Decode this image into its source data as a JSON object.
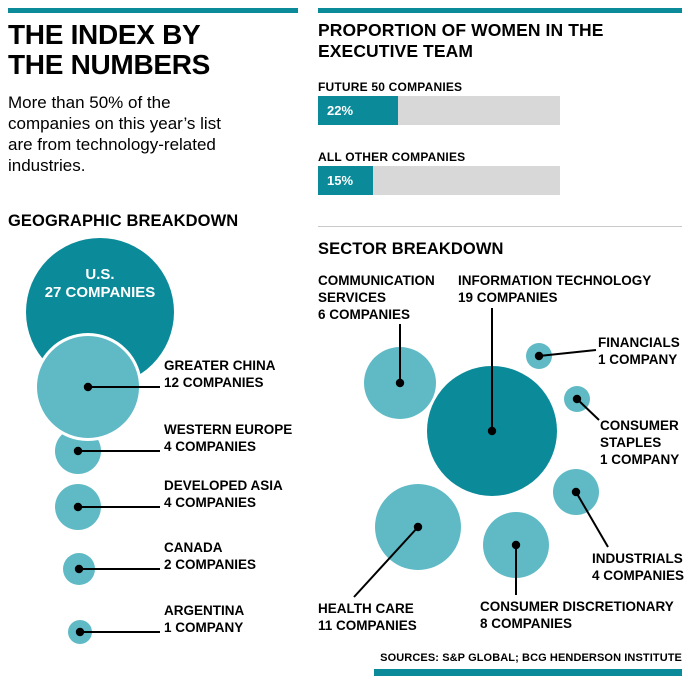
{
  "colors": {
    "teal": "#0B8A99",
    "teal_light": "#5FBAC5",
    "bar_track": "#D8D8D8",
    "text": "#000000"
  },
  "left": {
    "title_line1": "THE INDEX BY",
    "title_line2": "THE NUMBERS",
    "subtitle": "More than 50% of the companies on this year’s list are from technology-related industries.",
    "geo": {
      "heading": "GEOGRAPHIC BREAKDOWN",
      "bubbles": [
        {
          "region": "U.S.",
          "count": "27 COMPANIES"
        },
        {
          "region": "GREATER CHINA",
          "count": "12 COMPANIES"
        },
        {
          "region": "WESTERN EUROPE",
          "count": "4 COMPANIES"
        },
        {
          "region": "DEVELOPED ASIA",
          "count": "4 COMPANIES"
        },
        {
          "region": "CANADA",
          "count": "2 COMPANIES"
        },
        {
          "region": "ARGENTINA",
          "count": "1 COMPANY"
        }
      ]
    }
  },
  "right": {
    "women": {
      "heading": "PROPORTION OF WOMEN IN THE EXECUTIVE TEAM",
      "bars": [
        {
          "label": "FUTURE 50 COMPANIES",
          "value": "22%",
          "pct": 22
        },
        {
          "label": "ALL OTHER COMPANIES",
          "value": "15%",
          "pct": 15
        }
      ]
    },
    "sector": {
      "heading": "SECTOR BREAKDOWN",
      "bubbles": [
        {
          "name": "COMMUNICATION SERVICES",
          "count": "6 COMPANIES"
        },
        {
          "name": "INFORMATION TECHNOLOGY",
          "count": "19 COMPANIES"
        },
        {
          "name": "FINANCIALS",
          "count": "1 COMPANY"
        },
        {
          "name": "CONSUMER STAPLES",
          "count": "1 COMPANY"
        },
        {
          "name": "INDUSTRIALS",
          "count": "4 COMPANIES"
        },
        {
          "name": "CONSUMER DISCRETIONARY",
          "count": "8 COMPANIES"
        },
        {
          "name": "HEALTH CARE",
          "count": "11 COMPANIES"
        }
      ]
    }
  },
  "footer": {
    "sources": "SOURCES: S&P GLOBAL; BCG HENDERSON INSTITUTE"
  },
  "chart_data": [
    {
      "type": "bar",
      "title": "PROPORTION OF WOMEN IN THE EXECUTIVE TEAM",
      "categories": [
        "FUTURE 50 COMPANIES",
        "ALL OTHER COMPANIES"
      ],
      "values": [
        22,
        15
      ],
      "unit": "%",
      "orientation": "horizontal",
      "xlim": [
        0,
        100
      ],
      "grid": false,
      "legend": false
    },
    {
      "type": "bubble",
      "title": "GEOGRAPHIC BREAKDOWN",
      "categories": [
        "U.S.",
        "GREATER CHINA",
        "WESTERN EUROPE",
        "DEVELOPED ASIA",
        "CANADA",
        "ARGENTINA"
      ],
      "values": [
        27,
        12,
        4,
        4,
        2,
        1
      ],
      "unit": "companies",
      "note": "bubble area proportional to number of companies; U.S. bubble dark teal, others light teal"
    },
    {
      "type": "bubble",
      "title": "SECTOR BREAKDOWN",
      "categories": [
        "COMMUNICATION SERVICES",
        "INFORMATION TECHNOLOGY",
        "FINANCIALS",
        "CONSUMER STAPLES",
        "INDUSTRIALS",
        "CONSUMER DISCRETIONARY",
        "HEALTH CARE"
      ],
      "values": [
        6,
        19,
        1,
        1,
        4,
        8,
        11
      ],
      "unit": "companies",
      "note": "bubble area proportional to number of companies; Information Technology bubble dark teal, others light teal"
    }
  ]
}
